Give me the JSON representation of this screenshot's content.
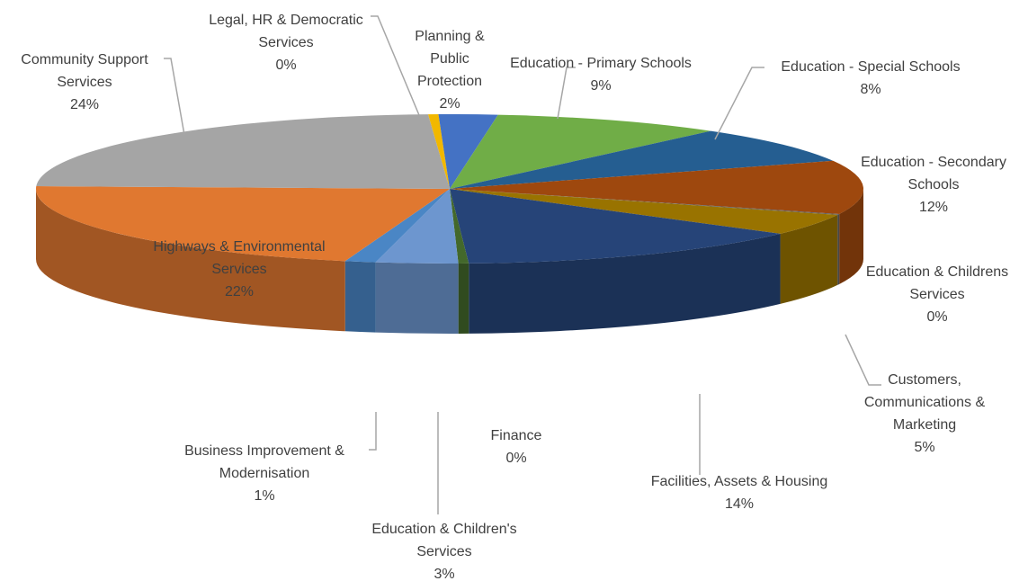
{
  "chart_data": {
    "type": "pie3d",
    "categories": [
      "Legal, HR & Democratic Services",
      "Planning & Public Protection",
      "Education - Primary Schools",
      "Education - Special Schools",
      "Education - Secondary Schools",
      "Education & Childrens Services",
      "Customers, Communications & Marketing",
      "Facilities, Assets & Housing",
      "Finance",
      "Education & Children's Services",
      "Business Improvement & Modernisation",
      "Highways & Environmental Services",
      "Community Support Services"
    ],
    "values": [
      0.4,
      2.3,
      9.0,
      8.0,
      11.6,
      0.2,
      4.6,
      14.0,
      0.4,
      3.2,
      1.2,
      21.5,
      23.6
    ],
    "value_labels": [
      "0%",
      "2%",
      "9%",
      "8%",
      "12%",
      "0%",
      "5%",
      "14%",
      "0%",
      "3%",
      "1%",
      "22%",
      "24%"
    ],
    "colors": [
      "#f2b800",
      "#4472c4",
      "#70ad47",
      "#255e91",
      "#9e480e",
      "#636363",
      "#997300",
      "#264478",
      "#43682b",
      "#6d96cf",
      "#4a86c5",
      "#e07830",
      "#a5a5a5"
    ]
  }
}
